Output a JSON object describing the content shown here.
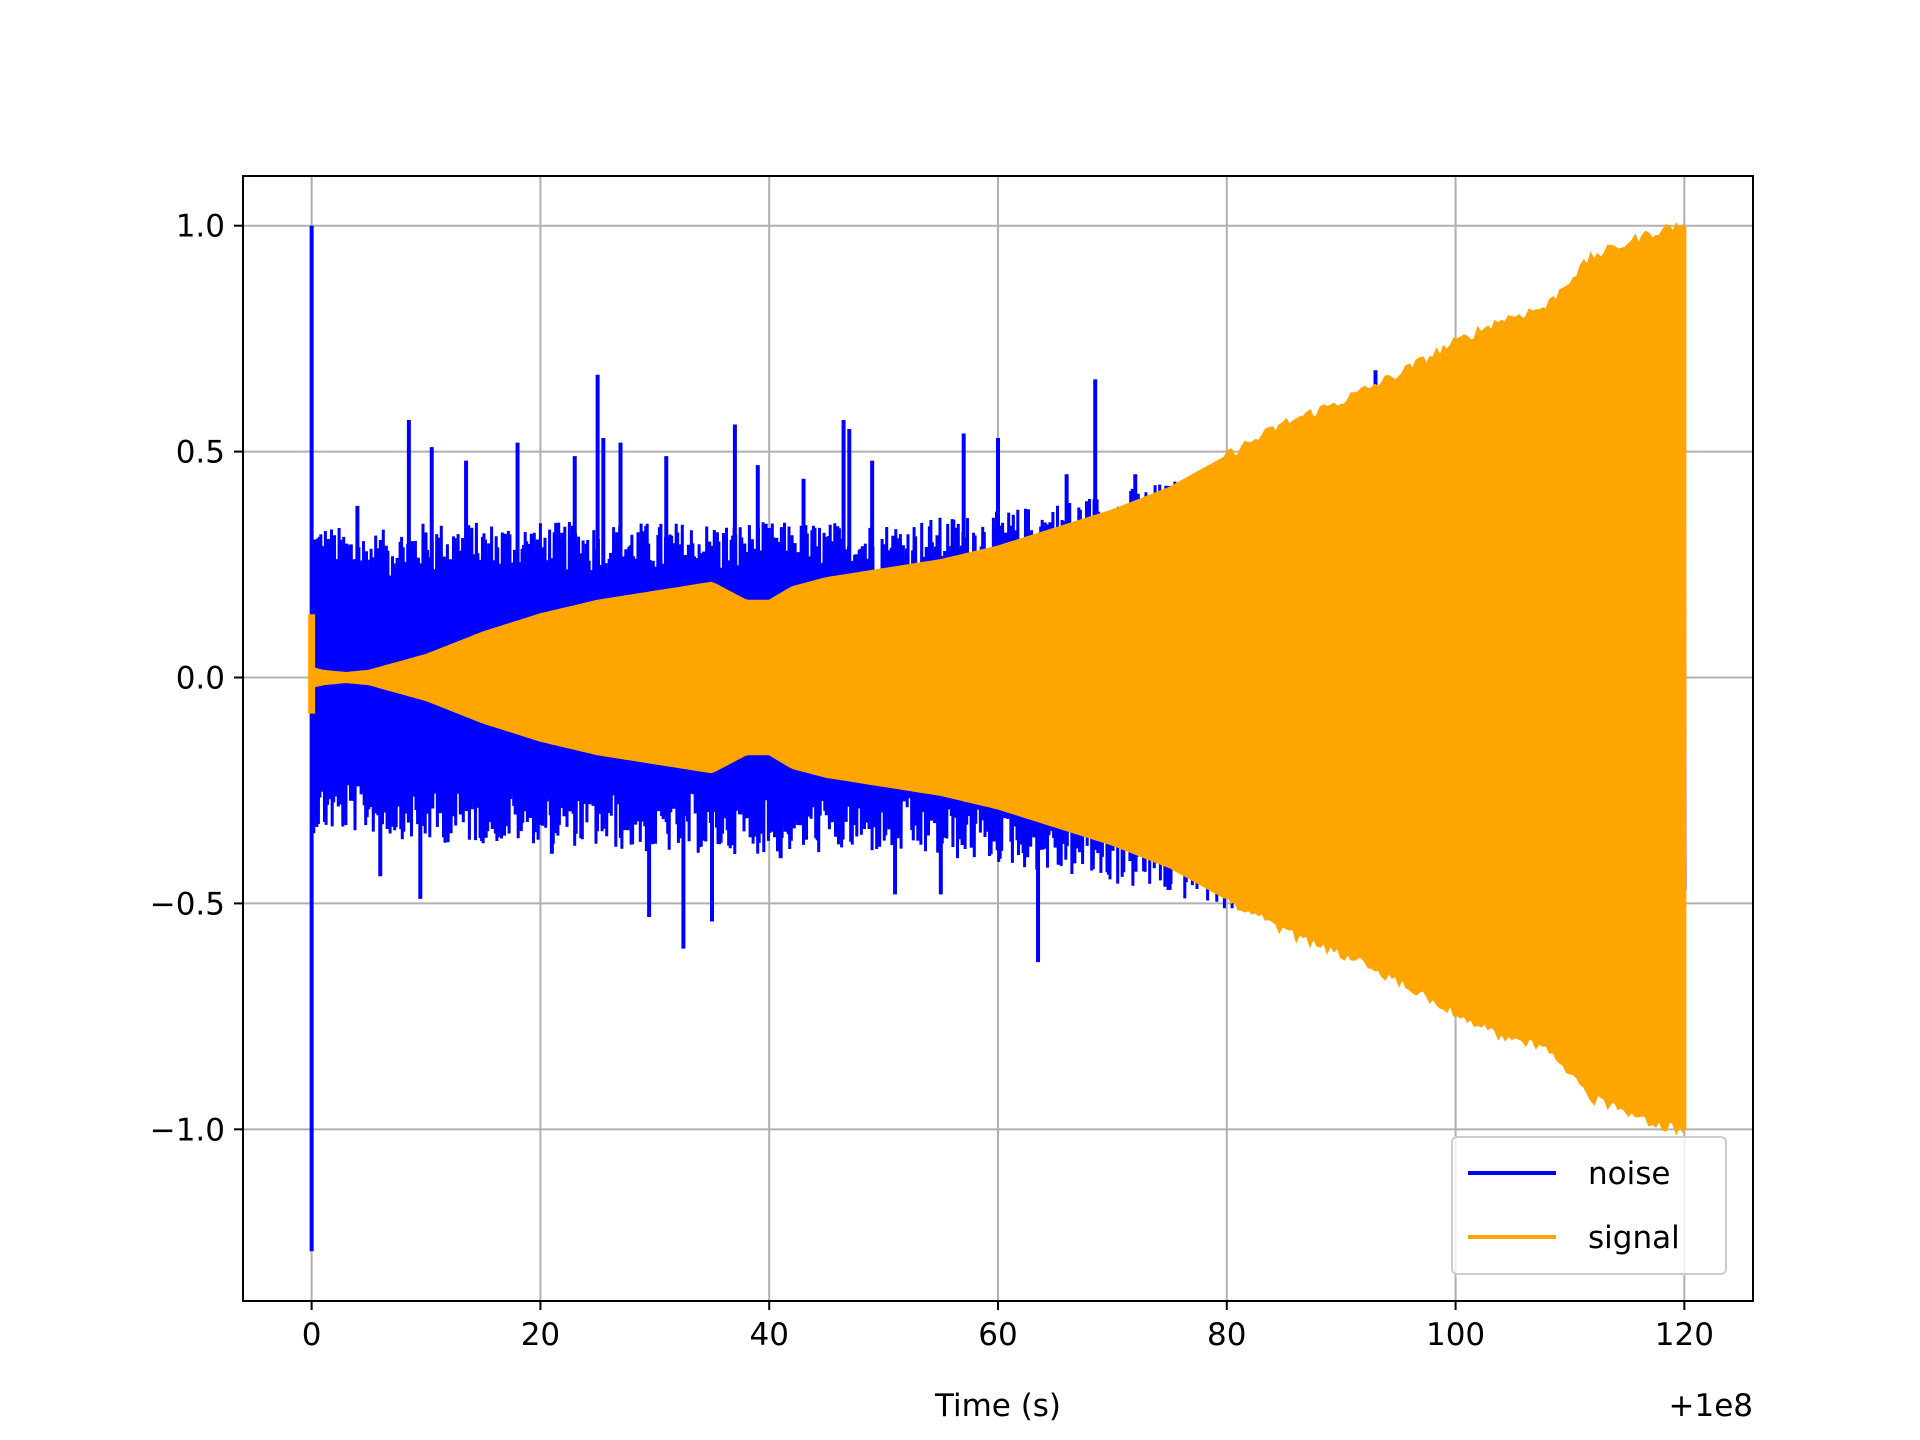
{
  "chart_data": {
    "type": "line",
    "title": "",
    "xlabel": "Time (s)",
    "ylabel": "",
    "x_offset_label": "+1e8",
    "xlim": [
      -6,
      126
    ],
    "ylim": [
      -1.38,
      1.11
    ],
    "x_ticks": [
      0,
      20,
      40,
      60,
      80,
      100,
      120
    ],
    "x_tick_labels": [
      "0",
      "20",
      "40",
      "60",
      "80",
      "100",
      "120"
    ],
    "y_ticks": [
      1.0,
      0.5,
      0.0,
      -0.5,
      -1.0
    ],
    "y_tick_labels": [
      "1.0",
      "0.5",
      "0.0",
      "−0.5",
      "−1.0"
    ],
    "grid": true,
    "legend_position": "lower right",
    "series": [
      {
        "name": "noise",
        "color": "#0000ff",
        "x_start": 0,
        "x_end": 120,
        "band_x": [
          0,
          5,
          10,
          20,
          30,
          40,
          50,
          60,
          70,
          80,
          90,
          95
        ],
        "band_upper": [
          0.3,
          0.28,
          0.3,
          0.3,
          0.3,
          0.3,
          0.3,
          0.32,
          0.36,
          0.4,
          0.46,
          0.5
        ],
        "band_lower": [
          -0.3,
          -0.3,
          -0.32,
          -0.32,
          -0.34,
          -0.34,
          -0.34,
          -0.36,
          -0.4,
          -0.45,
          -0.52,
          -0.55
        ],
        "spikes": [
          [
            0.0,
            1.0
          ],
          [
            0.0,
            -1.27
          ],
          [
            4.0,
            0.38
          ],
          [
            6.0,
            -0.44
          ],
          [
            8.5,
            0.57
          ],
          [
            9.5,
            -0.49
          ],
          [
            10.5,
            0.51
          ],
          [
            13.5,
            0.48
          ],
          [
            15.0,
            -0.35
          ],
          [
            18.0,
            0.52
          ],
          [
            21.0,
            -0.39
          ],
          [
            23.0,
            0.49
          ],
          [
            25.0,
            0.67
          ],
          [
            25.5,
            0.53
          ],
          [
            27.0,
            0.52
          ],
          [
            29.5,
            -0.53
          ],
          [
            31.0,
            0.49
          ],
          [
            32.5,
            -0.6
          ],
          [
            35.0,
            -0.54
          ],
          [
            37.0,
            0.56
          ],
          [
            39.0,
            0.47
          ],
          [
            41.0,
            -0.4
          ],
          [
            43.0,
            0.44
          ],
          [
            46.5,
            0.57
          ],
          [
            47.0,
            0.55
          ],
          [
            49.0,
            0.48
          ],
          [
            51.0,
            -0.48
          ],
          [
            55.0,
            -0.48
          ],
          [
            57.0,
            0.54
          ],
          [
            60.0,
            0.53
          ],
          [
            63.5,
            -0.63
          ],
          [
            66.0,
            0.45
          ],
          [
            68.5,
            0.66
          ],
          [
            72.0,
            0.45
          ],
          [
            75.0,
            -0.47
          ],
          [
            93.0,
            0.68
          ]
        ]
      },
      {
        "name": "signal",
        "color": "#ffa500",
        "x_start": 0,
        "x_end": 120,
        "envelope_x": [
          0.2,
          1,
          3,
          5,
          10,
          15,
          20,
          25,
          30,
          35,
          38,
          40,
          42,
          45,
          50,
          55,
          60,
          65,
          70,
          75,
          80,
          85,
          90,
          95,
          100,
          104,
          108,
          110,
          112,
          115,
          118,
          119.9
        ],
        "envelope_upper": [
          0.02,
          0.015,
          0.01,
          0.015,
          0.05,
          0.1,
          0.14,
          0.17,
          0.19,
          0.21,
          0.17,
          0.17,
          0.2,
          0.22,
          0.24,
          0.26,
          0.29,
          0.33,
          0.37,
          0.42,
          0.49,
          0.56,
          0.61,
          0.67,
          0.74,
          0.79,
          0.82,
          0.88,
          0.93,
          0.96,
          0.99,
          1.0
        ],
        "envelope_lower": [
          -0.02,
          -0.015,
          -0.01,
          -0.015,
          -0.05,
          -0.1,
          -0.14,
          -0.17,
          -0.19,
          -0.21,
          -0.17,
          -0.17,
          -0.2,
          -0.22,
          -0.24,
          -0.26,
          -0.29,
          -0.33,
          -0.37,
          -0.42,
          -0.49,
          -0.56,
          -0.61,
          -0.67,
          -0.74,
          -0.79,
          -0.82,
          -0.88,
          -0.93,
          -0.96,
          -0.99,
          -1.0
        ],
        "initial_burst": [
          0.14,
          -0.08
        ]
      }
    ]
  },
  "colors": {
    "noise": "#0000ff",
    "signal": "#ffa500",
    "grid": "#b0b0b0",
    "axes": "#000000",
    "background": "#ffffff"
  }
}
